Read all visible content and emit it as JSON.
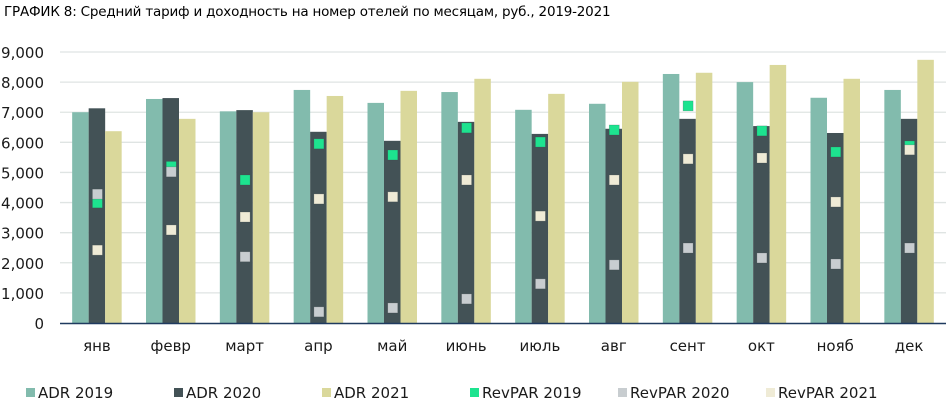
{
  "chart_data": {
    "type": "bar",
    "title": "ГРАФИК 8: Средний тариф и доходность на номер отелей по месяцам, руб., 2019-2021",
    "xlabel": "",
    "ylabel": "",
    "ylim": [
      0,
      9000
    ],
    "yticks": [
      0,
      1000,
      2000,
      3000,
      4000,
      5000,
      6000,
      7000,
      8000,
      9000
    ],
    "ytick_labels": [
      "0",
      "1,000",
      "2,000",
      "3,000",
      "4,000",
      "5,000",
      "6,000",
      "7,000",
      "8,000",
      "9,000"
    ],
    "grid": true,
    "legend_position": "bottom",
    "categories": [
      "янв",
      "февр",
      "март",
      "апр",
      "май",
      "июнь",
      "июль",
      "авг",
      "сент",
      "окт",
      "нояб",
      "дек"
    ],
    "series": [
      {
        "name": "ADR 2019",
        "kind": "bar",
        "color": "#82bbad",
        "values": [
          7000,
          7440,
          7030,
          7740,
          7310,
          7670,
          7080,
          7280,
          8270,
          8000,
          7480,
          7740
        ]
      },
      {
        "name": "ADR 2020",
        "kind": "bar",
        "color": "#435256",
        "values": [
          7130,
          7470,
          7070,
          6350,
          6050,
          6680,
          6280,
          6450,
          6780,
          6540,
          6310,
          6780
        ]
      },
      {
        "name": "ADR 2021",
        "kind": "bar",
        "color": "#dad89b",
        "values": [
          6370,
          6780,
          7000,
          7540,
          7710,
          8110,
          7610,
          8010,
          8310,
          8570,
          8110,
          8740
        ]
      },
      {
        "name": "RevPAR 2019",
        "kind": "marker",
        "color": "#1de38f",
        "values": [
          3990,
          5200,
          4750,
          5950,
          5580,
          6480,
          6010,
          6410,
          7210,
          6380,
          5680,
          5880
        ]
      },
      {
        "name": "RevPAR 2020",
        "kind": "marker",
        "color": "#c8cdd0",
        "values": [
          4280,
          5020,
          2200,
          370,
          500,
          800,
          1300,
          1930,
          2490,
          2160,
          1960,
          2490
        ]
      },
      {
        "name": "RevPAR 2021",
        "kind": "marker",
        "color": "#efebd6",
        "values": [
          2420,
          3090,
          3520,
          4120,
          4190,
          4750,
          3550,
          4750,
          5450,
          5480,
          4020,
          5750
        ]
      }
    ],
    "gridline_color": "#dfe4e3",
    "axis_color": "#1f3a5f"
  }
}
